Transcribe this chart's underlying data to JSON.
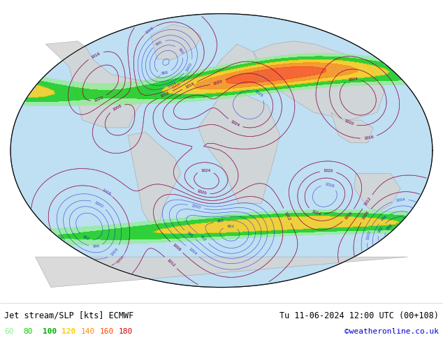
{
  "title_left": "Jet stream/SLP [kts] ECMWF",
  "title_right": "Tu 11-06-2024 12:00 UTC (00+108)",
  "copyright": "©weatheronline.co.uk",
  "legend_values": [
    60,
    80,
    100,
    120,
    140,
    160,
    180
  ],
  "legend_colors": [
    "#90ee90",
    "#00cc00",
    "#00aa00",
    "#ffcc00",
    "#ff8800",
    "#ff4400",
    "#cc0000"
  ],
  "bg_color": "#ffffff",
  "map_bg": "#e8f4f8",
  "land_color": "#f0f0f0",
  "contour_color_low": "#0000cc",
  "contour_color_high": "#cc0000",
  "figsize": [
    6.34,
    4.9
  ],
  "dpi": 100
}
